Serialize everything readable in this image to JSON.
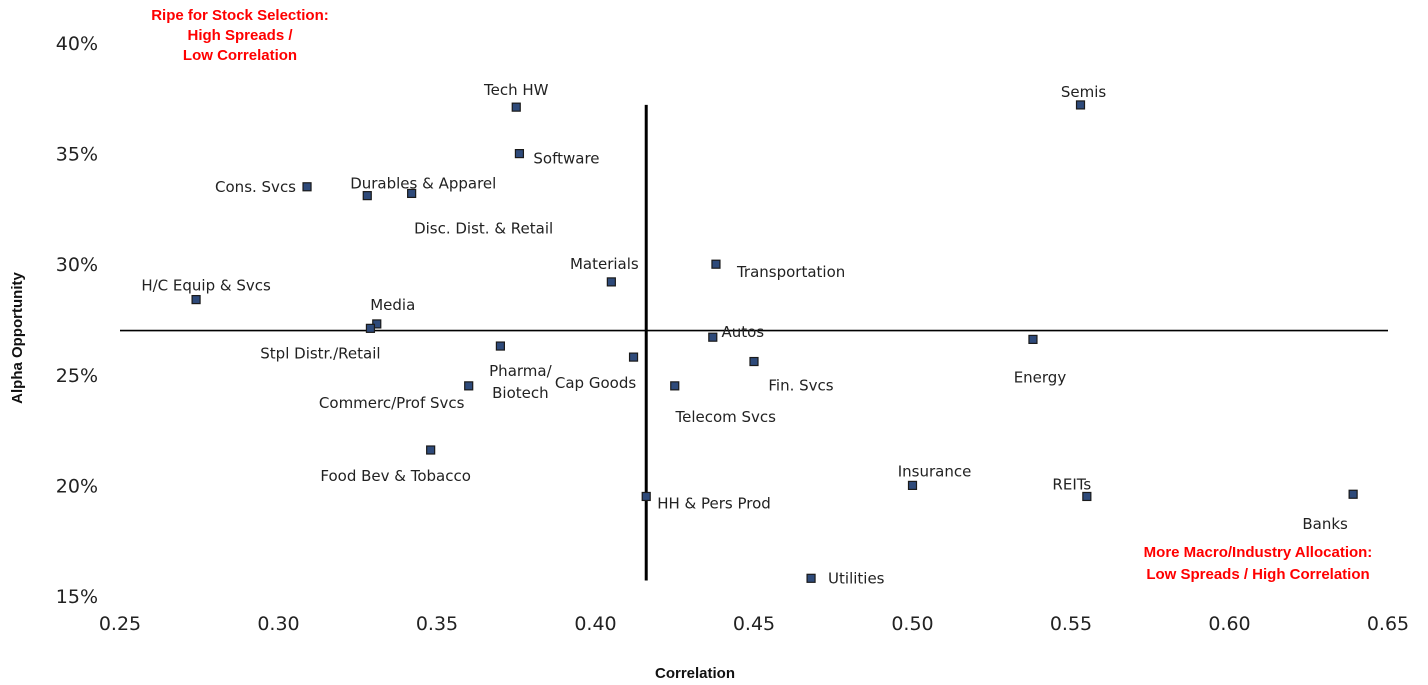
{
  "chart_data": {
    "type": "scatter",
    "xlabel": "Correlation",
    "ylabel": "Alpha Opportunity",
    "xlim": [
      0.25,
      0.65
    ],
    "ylim": [
      0.15,
      0.4
    ],
    "x_ticks": [
      "0.25",
      "0.30",
      "0.35",
      "0.40",
      "0.45",
      "0.50",
      "0.55",
      "0.60",
      "0.65"
    ],
    "y_ticks": [
      "15%",
      "20%",
      "25%",
      "30%",
      "35%",
      "40%"
    ],
    "x_tick_values": [
      0.25,
      0.3,
      0.35,
      0.4,
      0.45,
      0.5,
      0.55,
      0.6,
      0.65
    ],
    "y_tick_values": [
      0.15,
      0.2,
      0.25,
      0.3,
      0.35,
      0.4
    ],
    "grid": false,
    "marker_color": "#2e4a7a",
    "marker_edge_color": "#1a1a1a",
    "crosshair": {
      "x": 0.416,
      "y": 0.27,
      "y_from": 0.157,
      "y_to": 0.372
    },
    "points": [
      {
        "name": "Tech HW",
        "x": 0.375,
        "y": 0.371
      },
      {
        "name": "Semis",
        "x": 0.553,
        "y": 0.372
      },
      {
        "name": "Software",
        "x": 0.376,
        "y": 0.35
      },
      {
        "name": "Cons. Svcs",
        "x": 0.309,
        "y": 0.335
      },
      {
        "name": "Durables & Apparel",
        "x": 0.328,
        "y": 0.331
      },
      {
        "name": "Disc. Dist. & Retail",
        "x": 0.342,
        "y": 0.332
      },
      {
        "name": "Transportation",
        "x": 0.438,
        "y": 0.3
      },
      {
        "name": "Materials",
        "x": 0.405,
        "y": 0.292
      },
      {
        "name": "H/C Equip & Svcs",
        "x": 0.274,
        "y": 0.284
      },
      {
        "name": "Media",
        "x": 0.331,
        "y": 0.273
      },
      {
        "name": "Stpl Distr./Retail",
        "x": 0.329,
        "y": 0.271
      },
      {
        "name": "Autos",
        "x": 0.437,
        "y": 0.267
      },
      {
        "name": "Energy",
        "x": 0.538,
        "y": 0.266
      },
      {
        "name": "Pharma/\nBiotech",
        "x": 0.37,
        "y": 0.263
      },
      {
        "name": "Cap Goods",
        "x": 0.412,
        "y": 0.258
      },
      {
        "name": "Fin. Svcs",
        "x": 0.45,
        "y": 0.256
      },
      {
        "name": "Commerc/Prof Svcs",
        "x": 0.36,
        "y": 0.245
      },
      {
        "name": "Telecom Svcs",
        "x": 0.425,
        "y": 0.245
      },
      {
        "name": "Food Bev & Tobacco",
        "x": 0.348,
        "y": 0.216
      },
      {
        "name": "Insurance",
        "x": 0.5,
        "y": 0.2
      },
      {
        "name": "HH & Pers Prod",
        "x": 0.416,
        "y": 0.195
      },
      {
        "name": "REITs",
        "x": 0.555,
        "y": 0.195
      },
      {
        "name": "Banks",
        "x": 0.639,
        "y": 0.196
      },
      {
        "name": "Utilities",
        "x": 0.468,
        "y": 0.158
      }
    ],
    "annotations": [
      {
        "id": "top-left",
        "color": "#ff0000",
        "lines": [
          "Ripe for Stock Selection:",
          "High Spreads /",
          "Low Correlation"
        ]
      },
      {
        "id": "bottom-right",
        "color": "#ff0000",
        "lines": [
          "More Macro/Industry Allocation:",
          "Low Spreads / High Correlation"
        ]
      }
    ]
  }
}
